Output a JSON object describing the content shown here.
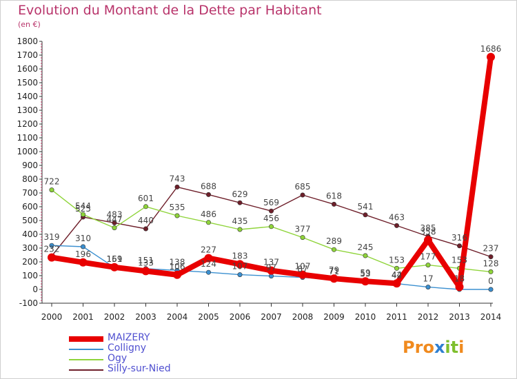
{
  "header": {
    "title": "Evolution du Montant de la Dette par Habitant",
    "subtitle": "(en €)"
  },
  "colors": {
    "title": "#b8336a",
    "legend_text": "#5050d0",
    "MAIZERY": "#e80000",
    "Colligny": "#3a8fd0",
    "Ogy": "#8fd43a",
    "Silly-sur-Nied": "#6e1f2a"
  },
  "logo": {
    "text": "Proxiti",
    "letters": [
      "P",
      "r",
      "o",
      "x",
      "i",
      "t",
      "i"
    ],
    "colors": [
      "#f08a1e",
      "#f08a1e",
      "#f08a1e",
      "#2f7fd0",
      "#7fbf2e",
      "#7fbf2e",
      "#f08a1e"
    ]
  },
  "chart_data": {
    "type": "line",
    "title": "Evolution du Montant de la Dette par Habitant",
    "subtitle": "(en €)",
    "categories": [
      "2000",
      "2001",
      "2002",
      "2003",
      "2004",
      "2005",
      "2006",
      "2007",
      "2008",
      "2009",
      "2010",
      "2011",
      "2012",
      "2013",
      "2014"
    ],
    "ylim": [
      -100,
      1800
    ],
    "yticks": [
      -100,
      0,
      100,
      200,
      300,
      400,
      500,
      600,
      700,
      800,
      900,
      1000,
      1100,
      1200,
      1300,
      1400,
      1500,
      1600,
      1700,
      1800
    ],
    "grid": false,
    "legend_position": "bottom-left",
    "series": [
      {
        "name": "Silly-sur-Nied",
        "values": [
          242,
          525,
          483,
          440,
          743,
          688,
          629,
          569,
          685,
          618,
          541,
          463,
          385,
          316,
          237
        ]
      },
      {
        "name": "Ogy",
        "values": [
          722,
          544,
          447,
          601,
          535,
          486,
          435,
          456,
          377,
          289,
          245,
          153,
          177,
          153,
          128
        ]
      },
      {
        "name": "Colligny",
        "values": [
          319,
          310,
          159,
          151,
          138,
          124,
          107,
          97,
          87,
          71,
          53,
          42,
          17,
          0,
          0
        ]
      },
      {
        "name": "MAIZERY",
        "values": [
          232,
          196,
          161,
          133,
          106,
          227,
          183,
          137,
          107,
          79,
          59,
          44,
          358,
          18,
          1686
        ]
      }
    ],
    "data_labels": {
      "Silly-sur-Nied": [
        "",
        "525",
        "483",
        "440",
        "743",
        "688",
        "629",
        "569",
        "685",
        "618",
        "541",
        "463",
        "385",
        "316",
        "237"
      ],
      "Ogy": [
        "722",
        "544",
        "447",
        "601",
        "535",
        "486",
        "435",
        "456",
        "377",
        "289",
        "245",
        "153",
        "177",
        "153",
        "128"
      ],
      "Colligny": [
        "319",
        "310",
        "159",
        "151",
        "138",
        "124",
        "107",
        "97",
        "87",
        "71",
        "53",
        "42",
        "17",
        "",
        "0"
      ],
      "MAIZERY": [
        "232",
        "196",
        "161",
        "133",
        "106",
        "227",
        "183",
        "137",
        "107",
        "79",
        "59",
        "44",
        "358",
        "18",
        "1686"
      ]
    },
    "legend_order": [
      "MAIZERY",
      "Colligny",
      "Ogy",
      "Silly-sur-Nied"
    ]
  }
}
